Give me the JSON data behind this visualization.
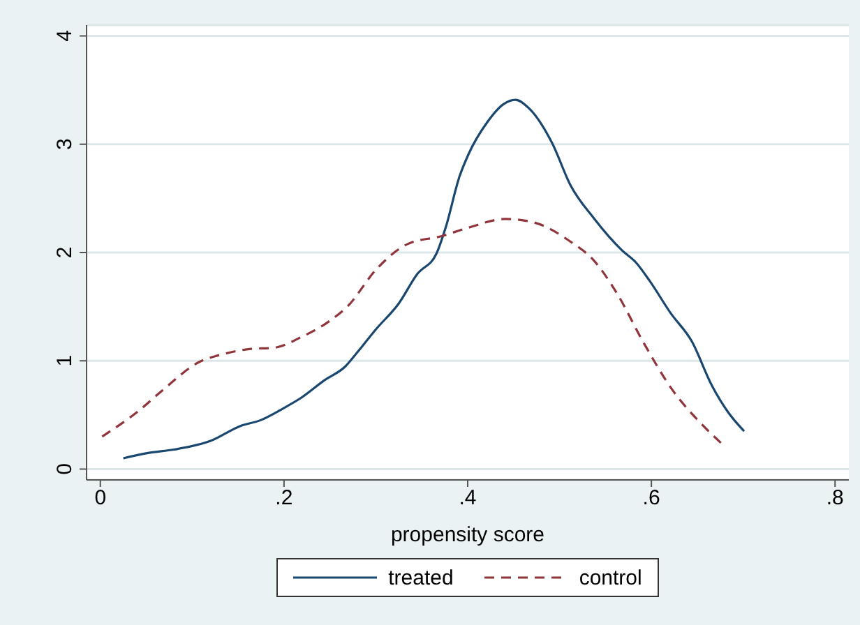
{
  "chart_data": {
    "type": "line",
    "xlabel": "propensity score",
    "xlim": [
      -0.015,
      0.815
    ],
    "xticks": [
      0,
      {
        "value": 0.2,
        "label": ".2"
      },
      {
        "value": 0.4,
        "label": ".4"
      },
      {
        "value": 0.6,
        "label": ".6"
      },
      {
        "value": 0.8,
        "label": ".8"
      }
    ],
    "ylim": [
      -0.1,
      4.1
    ],
    "yticks": [
      0,
      1,
      2,
      3,
      4
    ],
    "grid": "y",
    "legend": "bottom",
    "marker": "none",
    "series": [
      {
        "name": "treated",
        "color": "#1a476f",
        "line_style": "solid",
        "x": [
          0.025,
          0.053,
          0.08,
          0.12,
          0.153,
          0.174,
          0.199,
          0.219,
          0.244,
          0.267,
          0.28,
          0.3,
          0.325,
          0.345,
          0.366,
          0.376,
          0.391,
          0.401,
          0.421,
          0.439,
          0.452,
          0.467,
          0.492,
          0.512,
          0.537,
          0.568,
          0.583,
          0.598,
          0.621,
          0.644,
          0.666,
          0.684,
          0.701
        ],
        "values": [
          0.1,
          0.15,
          0.18,
          0.26,
          0.4,
          0.45,
          0.56,
          0.66,
          0.82,
          0.95,
          1.08,
          1.29,
          1.53,
          1.8,
          1.99,
          2.23,
          2.7,
          2.91,
          3.2,
          3.37,
          3.41,
          3.33,
          3.01,
          2.62,
          2.32,
          2.02,
          1.91,
          1.74,
          1.44,
          1.18,
          0.77,
          0.52,
          0.35
        ]
      },
      {
        "name": "control",
        "color": "#90353b",
        "line_style": "dashed",
        "x": [
          0.002,
          0.042,
          0.068,
          0.108,
          0.133,
          0.164,
          0.189,
          0.219,
          0.25,
          0.27,
          0.3,
          0.335,
          0.371,
          0.401,
          0.441,
          0.471,
          0.512,
          0.537,
          0.562,
          0.592,
          0.623,
          0.653,
          0.676
        ],
        "values": [
          0.3,
          0.54,
          0.73,
          0.99,
          1.06,
          1.11,
          1.12,
          1.22,
          1.37,
          1.51,
          1.84,
          2.08,
          2.15,
          2.23,
          2.31,
          2.28,
          2.1,
          1.93,
          1.63,
          1.16,
          0.73,
          0.43,
          0.24
        ]
      }
    ]
  }
}
